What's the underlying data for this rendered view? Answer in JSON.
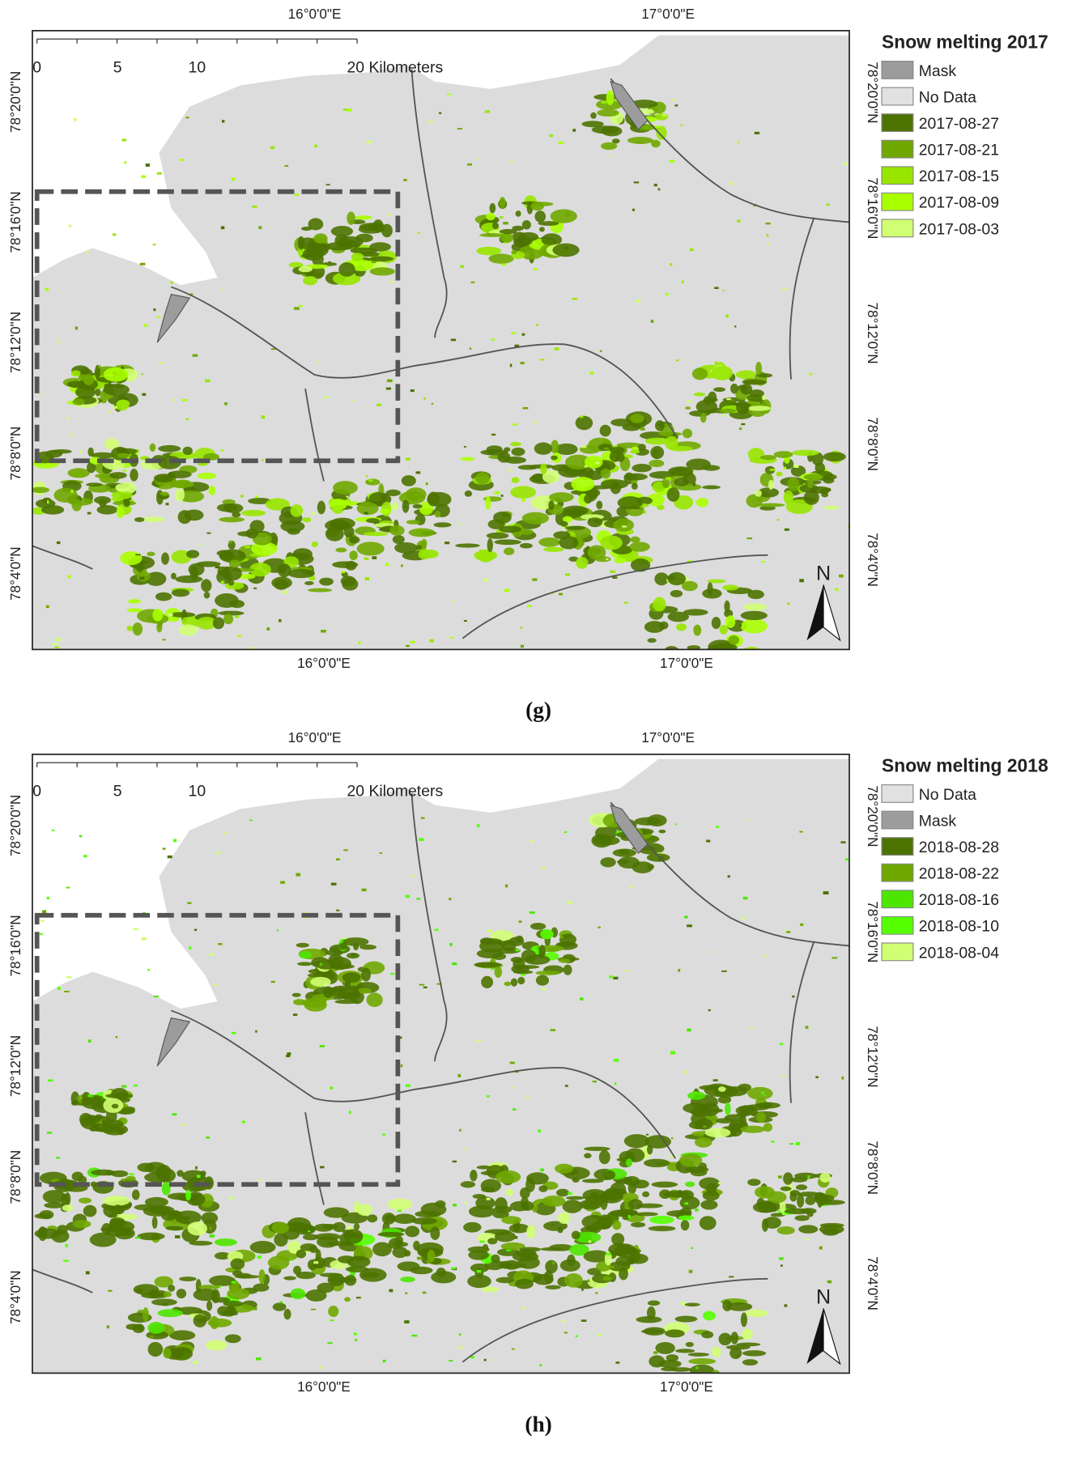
{
  "panels": [
    {
      "caption": "(g)",
      "legend": {
        "title": "Snow melting 2017",
        "items": [
          {
            "label": "Mask",
            "color": "#9c9c9c"
          },
          {
            "label": "No Data",
            "color": "#e1e1e1"
          },
          {
            "label": "2017-08-27",
            "color": "#4c7300"
          },
          {
            "label": "2017-08-21",
            "color": "#70a800"
          },
          {
            "label": "2017-08-15",
            "color": "#98e600"
          },
          {
            "label": "2017-08-09",
            "color": "#aaff00"
          },
          {
            "label": "2017-08-03",
            "color": "#d1ff73"
          }
        ]
      },
      "top_labels": [
        "16°0'0\"E",
        "17°0'0\"E"
      ],
      "bottom_labels": [
        "16°0'0\"E",
        "17°0'0\"E"
      ],
      "left_labels": [
        "78°20'0\"N",
        "78°16'0\"N",
        "78°12'0\"N",
        "78°8'0\"N",
        "78°4'0\"N"
      ],
      "right_labels": [
        "78°20'0\"N",
        "78°16'0\"N",
        "78°12'0\"N",
        "78°8'0\"N",
        "78°4'0\"N"
      ],
      "scale_labels": [
        "0",
        "5",
        "10",
        "20 Kilometers"
      ],
      "north": "N"
    },
    {
      "caption": "(h)",
      "legend": {
        "title": "Snow melting 2018",
        "items": [
          {
            "label": "No Data",
            "color": "#e1e1e1"
          },
          {
            "label": "Mask",
            "color": "#9c9c9c"
          },
          {
            "label": "2018-08-28",
            "color": "#4c7300"
          },
          {
            "label": "2018-08-22",
            "color": "#70a800"
          },
          {
            "label": "2018-08-16",
            "color": "#4ce600"
          },
          {
            "label": "2018-08-10",
            "color": "#55ff00"
          },
          {
            "label": "2018-08-04",
            "color": "#d1ff73"
          }
        ]
      },
      "top_labels": [
        "16°0'0\"E",
        "17°0'0\"E"
      ],
      "bottom_labels": [
        "16°0'0\"E",
        "17°0'0\"E"
      ],
      "left_labels": [
        "78°20'0\"N",
        "78°16'0\"N",
        "78°12'0\"N",
        "78°8'0\"N",
        "78°4'0\"N"
      ],
      "right_labels": [
        "78°20'0\"N",
        "78°16'0\"N",
        "78°12'0\"N",
        "78°8'0\"N",
        "78°4'0\"N"
      ],
      "scale_labels": [
        "0",
        "5",
        "10",
        "20 Kilometers"
      ],
      "north": "N"
    }
  ]
}
